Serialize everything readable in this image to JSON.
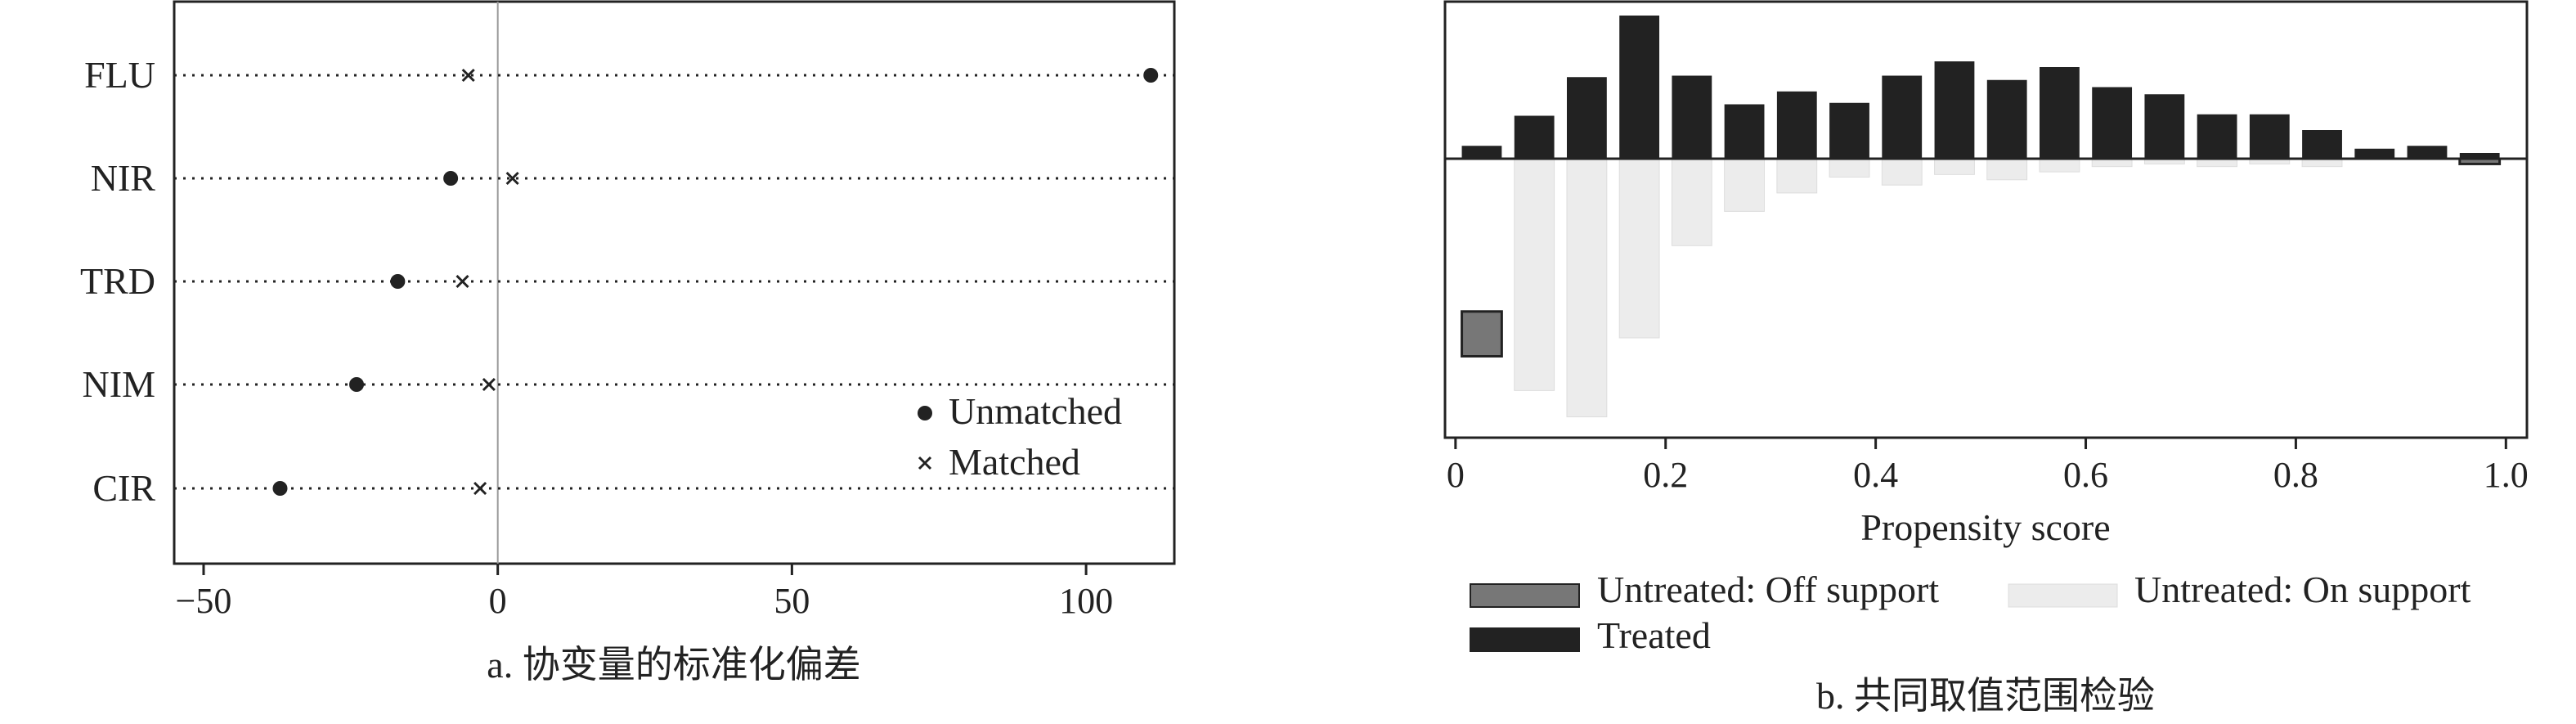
{
  "chart_data": [
    {
      "type": "scatter",
      "caption": "a. 协变量的标准化偏差",
      "categories": [
        "FLU",
        "NIR",
        "TRD",
        "NIM",
        "CIR"
      ],
      "xlim": [
        -55,
        115
      ],
      "x_ticks": [
        -50,
        0,
        50,
        100
      ],
      "x_tick_labels": [
        "−50",
        "0",
        "50",
        "100"
      ],
      "reference_line": 0,
      "grid": "dotted horizontal per category",
      "legend_position": "bottom-right",
      "series": [
        {
          "name": "Unmatched",
          "marker": "dot",
          "values": [
            111,
            -8,
            -17,
            -24,
            -37
          ]
        },
        {
          "name": "Matched",
          "marker": "cross",
          "values": [
            -5,
            2.5,
            -6,
            -1.5,
            -3
          ]
        }
      ]
    },
    {
      "type": "bar",
      "caption": "b. 共同取值范围检验",
      "xlabel": "Propensity score",
      "xlim": [
        -0.01,
        1.02
      ],
      "x_ticks": [
        0,
        0.2,
        0.4,
        0.6,
        0.8,
        1.0
      ],
      "x_tick_labels": [
        "0",
        "0.2",
        "0.4",
        "0.6",
        "0.8",
        "1.0"
      ],
      "y_axis_visible": false,
      "bin_width": 0.05,
      "bin_starts": [
        0,
        0.05,
        0.1,
        0.15,
        0.2,
        0.25,
        0.3,
        0.35,
        0.4,
        0.45,
        0.5,
        0.55,
        0.6,
        0.65,
        0.7,
        0.75,
        0.8,
        0.85,
        0.9,
        0.95
      ],
      "legend_position": "below",
      "series": [
        {
          "name": "Treated",
          "color": "#222222",
          "direction": "up",
          "values": [
            0.09,
            0.3,
            0.57,
            1.0,
            0.58,
            0.38,
            0.47,
            0.39,
            0.58,
            0.68,
            0.55,
            0.64,
            0.5,
            0.45,
            0.31,
            0.31,
            0.2,
            0.07,
            0.09,
            0.04
          ]
        },
        {
          "name": "Untreated: On support",
          "color": "#ececec",
          "direction": "down",
          "values": [
            0.0,
            0.88,
            0.98,
            0.68,
            0.33,
            0.2,
            0.13,
            0.07,
            0.1,
            0.06,
            0.08,
            0.05,
            0.03,
            0.02,
            0.03,
            0.02,
            0.03,
            0.0,
            0.0,
            0.0
          ]
        },
        {
          "name": "Untreated: Off support",
          "color": "#777777",
          "direction": "down",
          "values": [
            0.75,
            0,
            0,
            0,
            0,
            0,
            0,
            0,
            0,
            0,
            0,
            0,
            0,
            0,
            0,
            0,
            0,
            0,
            0,
            0.02
          ],
          "start": [
            0.58,
            0,
            0,
            0,
            0,
            0,
            0,
            0,
            0,
            0,
            0,
            0,
            0,
            0,
            0,
            0,
            0,
            0,
            0,
            0.0
          ]
        }
      ]
    }
  ],
  "colors": {
    "ink": "#222222",
    "treated": "#222222",
    "on_support": "#ececec",
    "off_support": "#777777",
    "refline": "#999999"
  }
}
